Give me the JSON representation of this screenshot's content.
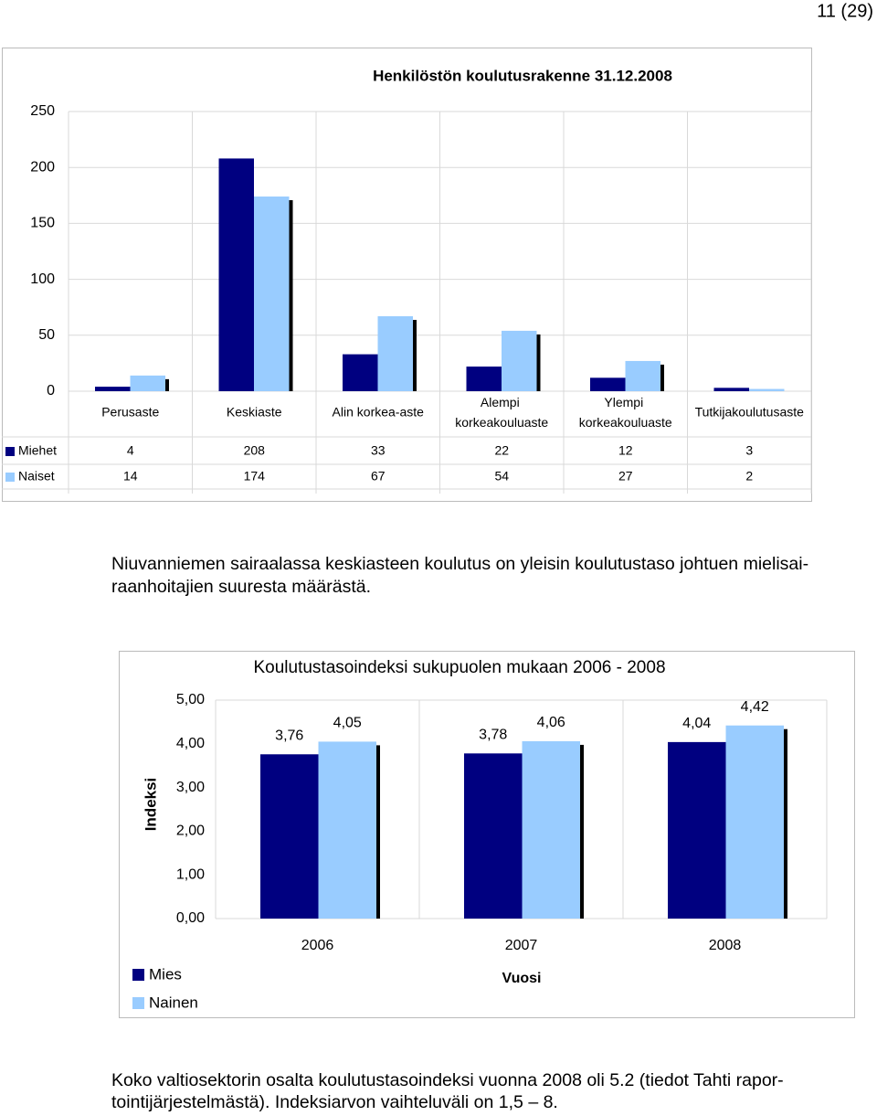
{
  "page_number": "11 (29)",
  "chart_data": [
    {
      "type": "bar",
      "title": "Henkilöstön koulutusrakenne 31.12.2008",
      "categories": [
        "Perusaste",
        "Keskiaste",
        "Alin korkea-aste",
        "Alempi korkeakouluaste",
        "Ylempi korkeakouluaste",
        "Tutkijakoulutusaste"
      ],
      "series": [
        {
          "name": "Miehet",
          "color": "#000080",
          "values": [
            4,
            208,
            33,
            22,
            12,
            3
          ]
        },
        {
          "name": "Naiset",
          "color": "#99ccff",
          "values": [
            14,
            174,
            67,
            54,
            27,
            2
          ]
        }
      ],
      "ylim": [
        0,
        250
      ],
      "yticks": [
        0,
        50,
        100,
        150,
        200,
        250
      ],
      "grid": true,
      "data_table": true
    },
    {
      "type": "bar",
      "title": "Koulutustasoindeksi sukupuolen mukaan 2006 - 2008",
      "x_label": "Vuosi",
      "y_label": "Indeksi",
      "categories": [
        "2006",
        "2007",
        "2008"
      ],
      "series": [
        {
          "name": "Mies",
          "color": "#000080",
          "values": [
            3.76,
            3.78,
            4.04
          ],
          "value_labels": [
            "3,76",
            "3,78",
            "4,04"
          ]
        },
        {
          "name": "Nainen",
          "color": "#99ccff",
          "values": [
            4.05,
            4.06,
            4.42
          ],
          "value_labels": [
            "4,05",
            "4,06",
            "4,42"
          ]
        }
      ],
      "ylim": [
        0,
        5
      ],
      "yticks": [
        {
          "value": 0,
          "label": "0,00"
        },
        {
          "value": 1,
          "label": "1,00"
        },
        {
          "value": 2,
          "label": "2,00"
        },
        {
          "value": 3,
          "label": "3,00"
        },
        {
          "value": 4,
          "label": "4,00"
        },
        {
          "value": 5,
          "label": "5,00"
        }
      ],
      "grid": false,
      "legend": "bottom-left"
    }
  ],
  "paragraphs": [
    [
      "Niuvanniemen sairaalassa keskiasteen koulutus on yleisin koulutustaso johtuen mielisai-",
      "raanhoitajien suuresta määrästä."
    ],
    [
      "Koko valtiosektorin osalta koulutustasoindeksi vuonna 2008 oli 5.2 (tiedot Tahti rapor-",
      "tointijärjestelmästä). Indeksiarvon vaihteluväli on 1,5 – 8."
    ]
  ]
}
